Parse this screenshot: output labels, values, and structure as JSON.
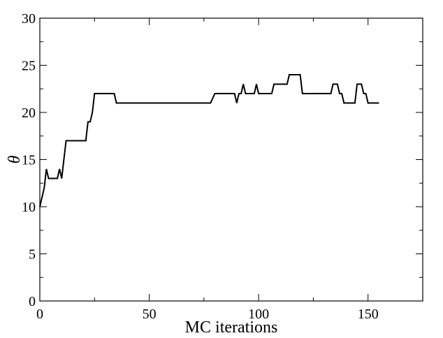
{
  "chart_data": {
    "type": "line",
    "title": "",
    "xlabel": "MC iterations",
    "ylabel": "θ",
    "xlim": [
      0,
      175
    ],
    "ylim": [
      0,
      30
    ],
    "xticks": [
      0,
      50,
      100,
      150
    ],
    "yticks": [
      0,
      5,
      10,
      15,
      20,
      25,
      30
    ],
    "grid": false,
    "series": [
      {
        "x": [
          0,
          1,
          2,
          3,
          4,
          5,
          6,
          7,
          8,
          9,
          10,
          11,
          12,
          13,
          14,
          15,
          16,
          17,
          18,
          19,
          20,
          21,
          22,
          23,
          24,
          25,
          26,
          27,
          28,
          29,
          30,
          31,
          32,
          33,
          34,
          35,
          40,
          45,
          50,
          55,
          60,
          65,
          70,
          75,
          78,
          80,
          85,
          88,
          89,
          90,
          91,
          92,
          93,
          94,
          95,
          96,
          97,
          98,
          99,
          100,
          101,
          102,
          103,
          104,
          105,
          106,
          107,
          108,
          109,
          110,
          111,
          112,
          113,
          114,
          115,
          116,
          117,
          118,
          119,
          120,
          125,
          130,
          132,
          133,
          134,
          135,
          136,
          137,
          138,
          139,
          140,
          141,
          142,
          143,
          144,
          145,
          146,
          147,
          148,
          149,
          150,
          151,
          152,
          153,
          154,
          155
        ],
        "y": [
          10,
          11,
          12,
          14,
          13,
          13,
          13,
          13,
          13,
          14,
          13,
          15,
          17,
          17,
          17,
          17,
          17,
          17,
          17,
          17,
          17,
          17,
          19,
          19,
          20,
          22,
          22,
          22,
          22,
          22,
          22,
          22,
          22,
          22,
          22,
          21,
          21,
          21,
          21,
          21,
          21,
          21,
          21,
          21,
          21,
          22,
          22,
          22,
          22,
          21,
          22,
          22,
          23,
          22,
          22,
          22,
          22,
          22,
          23,
          22,
          22,
          22,
          22,
          22,
          22,
          22,
          23,
          23,
          23,
          23,
          23,
          23,
          23,
          24,
          24,
          24,
          24,
          24,
          24,
          22,
          22,
          22,
          22,
          22,
          23,
          23,
          23,
          22,
          22,
          21,
          21,
          21,
          21,
          21,
          21,
          23,
          23,
          23,
          22,
          22,
          21,
          21,
          21,
          21,
          21,
          21
        ]
      }
    ]
  },
  "colors": {
    "line": "#000000",
    "axes": "#000000",
    "background": "#ffffff"
  }
}
